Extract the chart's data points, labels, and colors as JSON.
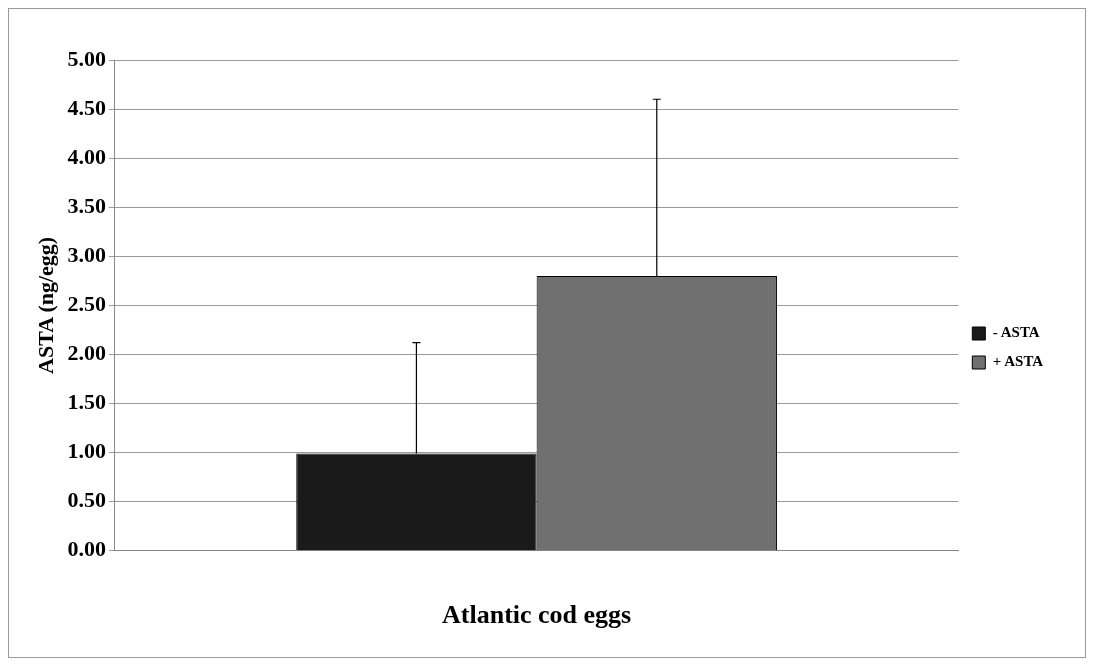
{
  "chart_data": {
    "type": "bar",
    "xlabel": "Atlantic cod eggs",
    "ylabel": "ASTA (ng/egg)",
    "categories": [
      null
    ],
    "series": [
      {
        "name": "- ASTA",
        "color": "#1a1a1a",
        "values": [
          0.99
        ],
        "errors": [
          [
            0.99,
            2.12
          ]
        ]
      },
      {
        "name": "+ ASTA",
        "color": "#707070",
        "values": [
          2.8
        ],
        "errors": [
          [
            2.8,
            4.6
          ]
        ]
      }
    ],
    "ylim": [
      0,
      5
    ],
    "yticks": [
      {
        "value": 0,
        "label": "0.00"
      },
      {
        "value": 0.5,
        "label": "0.50"
      },
      {
        "value": 1,
        "label": "1.00"
      },
      {
        "value": 1.5,
        "label": "1.50"
      },
      {
        "value": 2,
        "label": "2.00"
      },
      {
        "value": 2.5,
        "label": "2.50"
      },
      {
        "value": 3,
        "label": "3.00"
      },
      {
        "value": 3.5,
        "label": "3.50"
      },
      {
        "value": 4,
        "label": "4.00"
      },
      {
        "value": 4.5,
        "label": "4.50"
      },
      {
        "value": 5,
        "label": "5.00"
      }
    ],
    "grid": "y",
    "legend": "right"
  }
}
